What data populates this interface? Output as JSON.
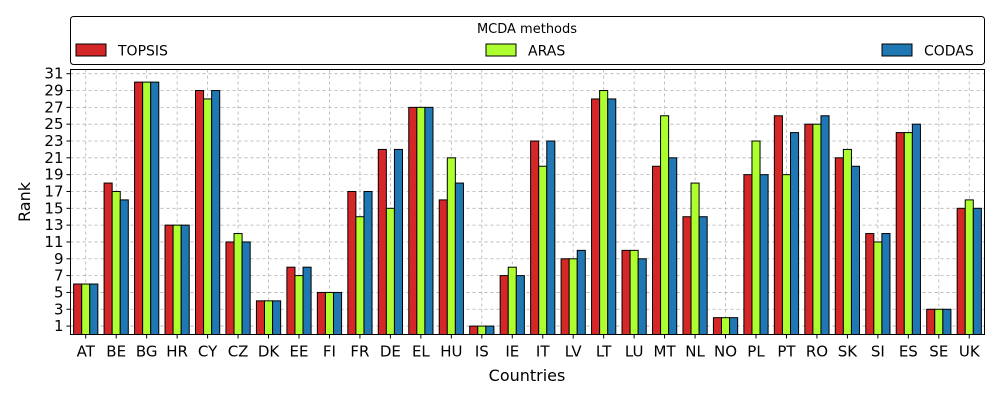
{
  "chart_data": {
    "type": "bar",
    "title": "",
    "xlabel": "Countries",
    "ylabel": "Rank",
    "ylim": [
      0,
      31.5
    ],
    "yticks": [
      1,
      3,
      5,
      7,
      9,
      11,
      13,
      15,
      17,
      19,
      21,
      23,
      25,
      27,
      29,
      31
    ],
    "grid": true,
    "legend": {
      "title": "MCDA methods",
      "placement": "top",
      "columns": 3
    },
    "categories": [
      "AT",
      "BE",
      "BG",
      "HR",
      "CY",
      "CZ",
      "DK",
      "EE",
      "FI",
      "FR",
      "DE",
      "EL",
      "HU",
      "IS",
      "IE",
      "IT",
      "LV",
      "LT",
      "LU",
      "MT",
      "NL",
      "NO",
      "PL",
      "PT",
      "RO",
      "SK",
      "SI",
      "ES",
      "SE",
      "UK"
    ],
    "series": [
      {
        "name": "TOPSIS",
        "color": "#d62728",
        "values": [
          6,
          18,
          30,
          13,
          29,
          11,
          4,
          8,
          5,
          17,
          22,
          27,
          16,
          1,
          7,
          23,
          9,
          28,
          10,
          20,
          14,
          2,
          19,
          26,
          25,
          21,
          12,
          24,
          3,
          15
        ]
      },
      {
        "name": "ARAS",
        "color": "#adff2f",
        "values": [
          6,
          17,
          30,
          13,
          28,
          12,
          4,
          7,
          5,
          14,
          15,
          27,
          21,
          1,
          8,
          20,
          9,
          29,
          10,
          26,
          18,
          2,
          23,
          19,
          25,
          22,
          11,
          24,
          3,
          16
        ]
      },
      {
        "name": "CODAS",
        "color": "#1f77b4",
        "values": [
          6,
          16,
          30,
          13,
          29,
          11,
          4,
          8,
          5,
          17,
          22,
          27,
          18,
          1,
          7,
          23,
          10,
          28,
          9,
          21,
          14,
          2,
          19,
          24,
          26,
          20,
          12,
          25,
          3,
          15
        ]
      }
    ]
  }
}
